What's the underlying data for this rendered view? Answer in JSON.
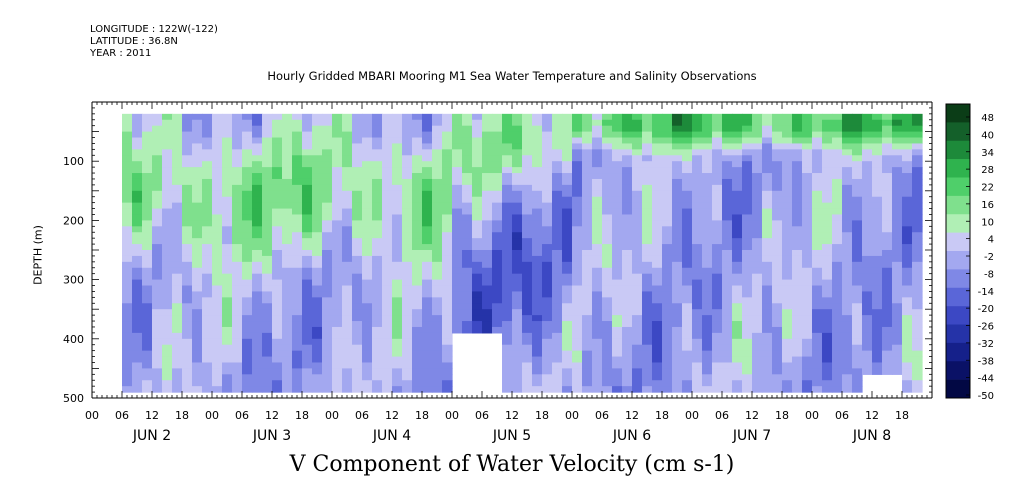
{
  "header": {
    "longitude": "LONGITUDE : 122W(-122)",
    "latitude": "LATITUDE : 36.8N",
    "year": "YEAR : 2011"
  },
  "chart_data": {
    "type": "heatmap",
    "title": "Hourly Gridded MBARI Mooring M1 Sea Water Temperature and Salinity Observations",
    "xlabel": "V Component of Water Velocity (cm s-1)",
    "ylabel": "DEPTH (m)",
    "ylim": [
      500,
      0
    ],
    "y_ticks": [
      "100",
      "200",
      "300",
      "400",
      "500"
    ],
    "x_hour_ticks": [
      "00",
      "06",
      "12",
      "18",
      "00",
      "06",
      "12",
      "18",
      "00",
      "06",
      "12",
      "18",
      "00",
      "06",
      "12",
      "18",
      "00",
      "06",
      "12",
      "18",
      "00",
      "06",
      "12",
      "18",
      "00",
      "06",
      "12",
      "18"
    ],
    "x_day_labels": [
      "JUN  2",
      "JUN  3",
      "JUN  4",
      "JUN  5",
      "JUN  6",
      "JUN  7",
      "JUN  8"
    ],
    "colorbar": {
      "labels": [
        "48",
        "40",
        "34",
        "28",
        "22",
        "16",
        "10",
        "4",
        "-2",
        "-8",
        "-14",
        "-20",
        "-26",
        "-32",
        "-38",
        "-44",
        "-50"
      ],
      "min": -50,
      "max": 50,
      "colors": [
        "#0b3d17",
        "#14602a",
        "#1d8a3a",
        "#2fb34e",
        "#4fcf6a",
        "#7fe08d",
        "#b0efb5",
        "#c9c9f5",
        "#a3a8f0",
        "#7f88e6",
        "#5a66d8",
        "#3c48c4",
        "#2533a8",
        "#15208a",
        "#0a1166",
        "#020844"
      ]
    },
    "data_range": {
      "start": "JUN 2 06",
      "end": "JUN 8 22",
      "depth_top": 20,
      "depth_bottom": 485
    },
    "summary_fields": [
      {
        "time_block": "JUN 2-3",
        "depth": "30-250",
        "v": 15
      },
      {
        "time_block": "JUN 2-4",
        "depth": "250-485",
        "v": -8
      },
      {
        "time_block": "JUN 5",
        "depth": "150-485",
        "v": -15
      },
      {
        "time_block": "JUN 6-8",
        "depth": "20-60",
        "v": 25
      },
      {
        "time_block": "JUN 6-8",
        "depth": "100-485",
        "v": -6
      }
    ]
  }
}
